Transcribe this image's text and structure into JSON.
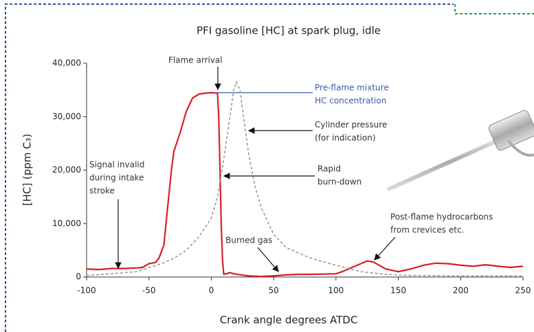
{
  "chart_data": {
    "type": "line",
    "title": "PFI gasoline [HC] at spark plug, idle",
    "xlabel": "Crank angle degrees ATDC",
    "ylabel": "[HC] (ppm C₃)",
    "xlim": [
      -100,
      250
    ],
    "xticks": [
      -100,
      -50,
      0,
      50,
      100,
      150,
      200,
      250
    ],
    "ylim": [
      0,
      40000
    ],
    "yticks": [
      0,
      {
        "value": 10000,
        "label": "10,000"
      },
      {
        "value": 20000,
        "label": "20,000"
      },
      {
        "value": 30000,
        "label": "30,000"
      },
      {
        "value": 40000,
        "label": "40,000"
      }
    ],
    "series": [
      {
        "color": "#d81e24",
        "style": "solid",
        "x": [
          -100,
          -90,
          -80,
          -70,
          -60,
          -55,
          -50,
          -45,
          -42,
          -38,
          -35,
          -32,
          -30,
          -25,
          -20,
          -15,
          -10,
          -5,
          0,
          5,
          6,
          7,
          8,
          9,
          10,
          15,
          20,
          30,
          40,
          50,
          60,
          70,
          80,
          100,
          105,
          110,
          115,
          120,
          125,
          130,
          140,
          150,
          160,
          170,
          180,
          190,
          200,
          210,
          220,
          230,
          240,
          250
        ],
        "values": [
          1500,
          1400,
          1600,
          1600,
          1700,
          1800,
          2500,
          2700,
          3500,
          6000,
          13000,
          20000,
          23500,
          27000,
          31000,
          33500,
          34200,
          34400,
          34500,
          34400,
          30000,
          20000,
          10000,
          3000,
          500,
          800,
          500,
          200,
          100,
          200,
          400,
          500,
          500,
          600,
          1000,
          1500,
          2000,
          2500,
          3000,
          2800,
          1500,
          1000,
          1500,
          2200,
          2600,
          2500,
          2200,
          2000,
          2300,
          2000,
          1800,
          2000
        ]
      },
      {
        "color": "#999999",
        "style": "dashed",
        "x": [
          -100,
          -80,
          -60,
          -40,
          -30,
          -20,
          -10,
          0,
          5,
          10,
          15,
          18,
          20,
          23,
          27,
          30,
          35,
          40,
          50,
          60,
          80,
          100,
          120,
          140,
          160,
          200,
          250
        ],
        "values": [
          300,
          600,
          1000,
          2500,
          3500,
          5000,
          7500,
          11000,
          15000,
          22000,
          30000,
          35000,
          36500,
          35000,
          28000,
          23000,
          17000,
          13000,
          8000,
          5500,
          3500,
          2200,
          1000,
          500,
          300,
          200,
          200
        ]
      }
    ],
    "reference_line": {
      "value": 34500,
      "color": "#3a5aa8"
    },
    "annotations": [
      {
        "text": [
          "Flame arrival"
        ]
      },
      {
        "text": [
          "Pre-flame mixture",
          "HC concentration"
        ],
        "color": "#3a5aa8"
      },
      {
        "text": [
          "Cylinder pressure",
          "(for indication)"
        ]
      },
      {
        "text": [
          "Rapid",
          "burn-down"
        ]
      },
      {
        "text": [
          "Signal invalid",
          "during intake",
          "stroke"
        ]
      },
      {
        "text": [
          "Burned gas"
        ]
      },
      {
        "text": [
          "Post-flame hydrocarbons",
          "from crevices etc."
        ]
      }
    ]
  }
}
